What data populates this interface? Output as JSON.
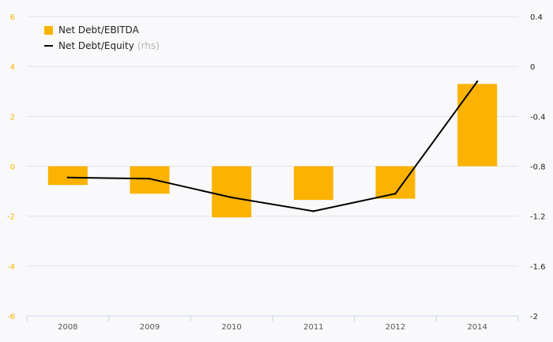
{
  "chart_data": {
    "type": "bar+line",
    "categories": [
      "2008",
      "2009",
      "2010",
      "2011",
      "2012",
      "2014"
    ],
    "series": [
      {
        "name": "Net Debt/EBITDA",
        "type": "bar",
        "axis": "left",
        "color": "#fbb200",
        "values": [
          -0.75,
          -1.1,
          -2.05,
          -1.35,
          -1.3,
          3.3
        ]
      },
      {
        "name": "Net Debt/Equity",
        "type": "line",
        "axis": "right",
        "color": "#000000",
        "values": [
          -0.89,
          -0.9,
          -1.05,
          -1.16,
          -1.02,
          -0.12
        ]
      }
    ],
    "legend_note": "(rhs)",
    "y_left": {
      "min": -6,
      "max": 6,
      "ticks": [
        "6",
        "4",
        "2",
        "0",
        "-2",
        "-4",
        "-6"
      ],
      "tick_color": "#fbb200"
    },
    "y_right": {
      "min": -2,
      "max": 0.4,
      "ticks": [
        "0.4",
        "0",
        "-0.4",
        "-0.8",
        "-1.2",
        "-1.6",
        "-2"
      ]
    },
    "grid": true,
    "legend_position": "top-left"
  }
}
